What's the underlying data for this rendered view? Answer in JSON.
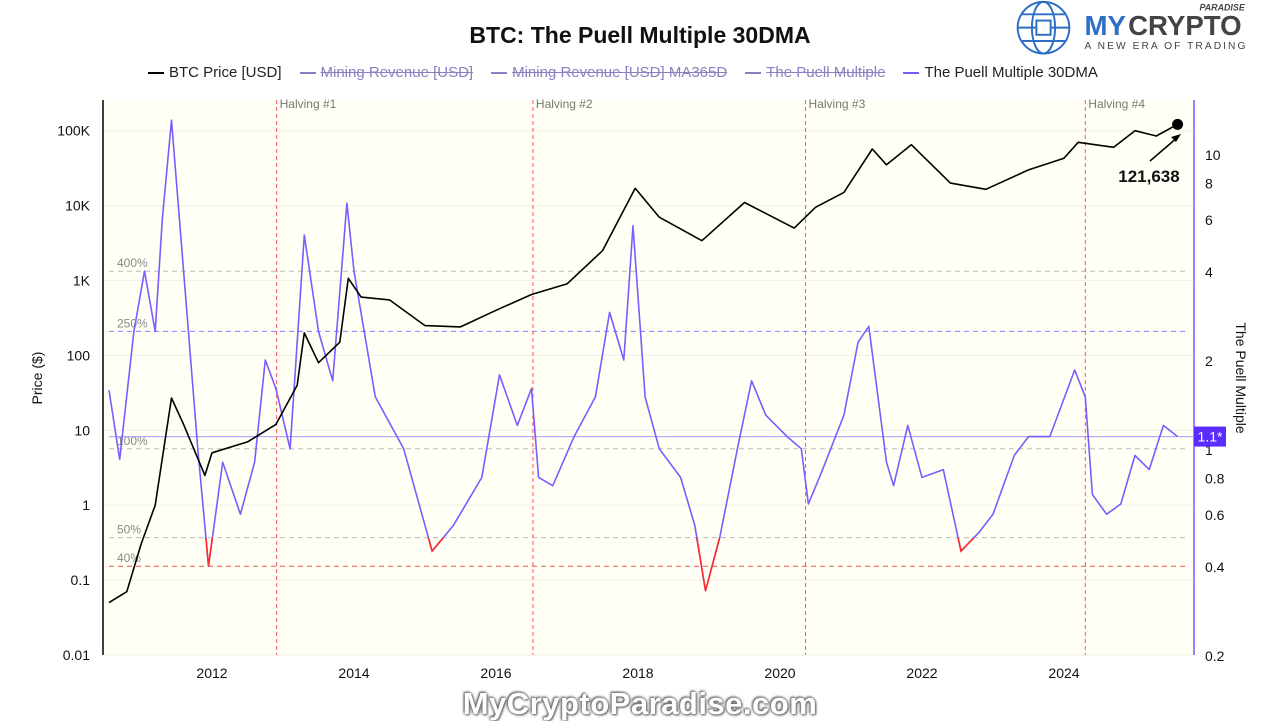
{
  "chart_data": {
    "type": "line",
    "title": "BTC: The Puell Multiple 30DMA",
    "legend": [
      {
        "name": "BTC Price [USD]",
        "color": "#000000",
        "visible": true
      },
      {
        "name": "Mining Revenue [USD]",
        "color": "#8a80c0",
        "visible": false
      },
      {
        "name": "Mining Revenue [USD] MA365D",
        "color": "#8a80c0",
        "visible": false
      },
      {
        "name": "The Puell Multiple",
        "color": "#8a80c0",
        "visible": false
      },
      {
        "name": "The Puell Multiple 30DMA",
        "color": "#7b5cff",
        "visible": true
      }
    ],
    "legend_placement": "top",
    "xaxis": {
      "ticks": [
        "2012",
        "2014",
        "2016",
        "2018",
        "2020",
        "2022",
        "2024"
      ],
      "range": [
        2010.5,
        2025.75
      ]
    },
    "yaxis_left": {
      "label": "Price ($)",
      "scale": "log",
      "ticks": [
        "0.01",
        "0.1",
        "1",
        "10",
        "100",
        "1K",
        "10K",
        "100K"
      ],
      "range": [
        0.01,
        200000
      ]
    },
    "yaxis_right": {
      "label": "The Puell Multiple",
      "scale": "log",
      "ticks": [
        "0.2",
        "0.4",
        "0.6",
        "0.8",
        "1",
        "2",
        "4",
        "6",
        "8",
        "10"
      ],
      "range": [
        0.2,
        14
      ]
    },
    "halvings": [
      {
        "label": "Halving #1",
        "x": 2012.91
      },
      {
        "label": "Halving #2",
        "x": 2016.52
      },
      {
        "label": "Halving #3",
        "x": 2020.36
      },
      {
        "label": "Halving #4",
        "x": 2024.3
      }
    ],
    "thresholds": [
      {
        "label": "400%",
        "value": 4,
        "color": "#bbbbbb"
      },
      {
        "label": "250%",
        "value": 2.5,
        "color": "#8f7cff"
      },
      {
        "label": "100%",
        "value": 1,
        "color": "#bbbbbb"
      },
      {
        "label": "50%",
        "value": 0.5,
        "color": "#bbbbbb"
      },
      {
        "label": "40%",
        "value": 0.4,
        "color": "#e85050"
      }
    ],
    "current_puell": {
      "value": 1.1,
      "label": "1.1*"
    },
    "last_price_annotation": "121,638",
    "series": [
      {
        "name": "BTC Price [USD]",
        "axis": "left",
        "color": "#000000",
        "x": [
          2010.55,
          2010.8,
          2011.0,
          2011.2,
          2011.43,
          2011.6,
          2011.9,
          2012.0,
          2012.5,
          2012.9,
          2013.2,
          2013.3,
          2013.5,
          2013.8,
          2013.92,
          2014.1,
          2014.5,
          2015.0,
          2015.5,
          2016.0,
          2016.5,
          2017.0,
          2017.5,
          2017.96,
          2018.3,
          2018.9,
          2019.5,
          2020.2,
          2020.5,
          2020.9,
          2021.3,
          2021.5,
          2021.85,
          2022.4,
          2022.9,
          2023.5,
          2024.0,
          2024.2,
          2024.7,
          2025.0,
          2025.3,
          2025.6
        ],
        "y": [
          0.05,
          0.07,
          0.3,
          1,
          27,
          12,
          2.5,
          5,
          7,
          12,
          40,
          200,
          80,
          150,
          1070,
          600,
          550,
          250,
          240,
          400,
          650,
          900,
          2500,
          17000,
          7000,
          3400,
          11000,
          5000,
          9500,
          15000,
          57000,
          35000,
          65000,
          20000,
          16500,
          30000,
          43000,
          70000,
          60000,
          100000,
          85000,
          121638
        ]
      },
      {
        "name": "The Puell Multiple 30DMA",
        "axis": "right",
        "color": "#7b5cff",
        "low_color": "#ff2a2a",
        "x": [
          2010.55,
          2010.7,
          2010.9,
          2011.05,
          2011.2,
          2011.3,
          2011.43,
          2011.6,
          2011.8,
          2011.95,
          2012.15,
          2012.4,
          2012.6,
          2012.75,
          2012.9,
          2013.1,
          2013.3,
          2013.5,
          2013.7,
          2013.9,
          2014.0,
          2014.3,
          2014.7,
          2015.0,
          2015.1,
          2015.4,
          2015.8,
          2016.05,
          2016.3,
          2016.5,
          2016.6,
          2016.8,
          2017.1,
          2017.4,
          2017.6,
          2017.8,
          2017.93,
          2018.1,
          2018.3,
          2018.6,
          2018.8,
          2018.95,
          2019.15,
          2019.4,
          2019.6,
          2019.8,
          2020.1,
          2020.3,
          2020.4,
          2020.6,
          2020.9,
          2021.1,
          2021.25,
          2021.5,
          2021.6,
          2021.8,
          2022.0,
          2022.3,
          2022.55,
          2022.8,
          2023.0,
          2023.3,
          2023.5,
          2023.8,
          2024.15,
          2024.3,
          2024.4,
          2024.6,
          2024.8,
          2025.0,
          2025.2,
          2025.4,
          2025.6
        ],
        "y": [
          1.58,
          0.92,
          2.5,
          4,
          2.5,
          6,
          13,
          4,
          1.0,
          0.4,
          0.9,
          0.6,
          0.9,
          2,
          1.6,
          1.0,
          5.3,
          2.5,
          1.7,
          6.8,
          4,
          1.5,
          1.0,
          0.55,
          0.45,
          0.55,
          0.8,
          1.78,
          1.2,
          1.6,
          0.8,
          0.75,
          1.1,
          1.5,
          2.9,
          2.0,
          5.7,
          1.5,
          1.0,
          0.8,
          0.55,
          0.33,
          0.5,
          1.0,
          1.7,
          1.3,
          1.1,
          1.0,
          0.65,
          0.85,
          1.3,
          2.3,
          2.6,
          0.9,
          0.75,
          1.2,
          0.8,
          0.85,
          0.45,
          0.52,
          0.6,
          0.95,
          1.1,
          1.1,
          1.85,
          1.5,
          0.7,
          0.6,
          0.65,
          0.95,
          0.85,
          1.2,
          1.1
        ]
      }
    ]
  },
  "branding": {
    "logo_text": "MYCRYPTO",
    "logo_super": "PARADISE",
    "logo_tagline": "A NEW ERA OF TRADING",
    "watermark": "MyCryptoParadise.com"
  }
}
